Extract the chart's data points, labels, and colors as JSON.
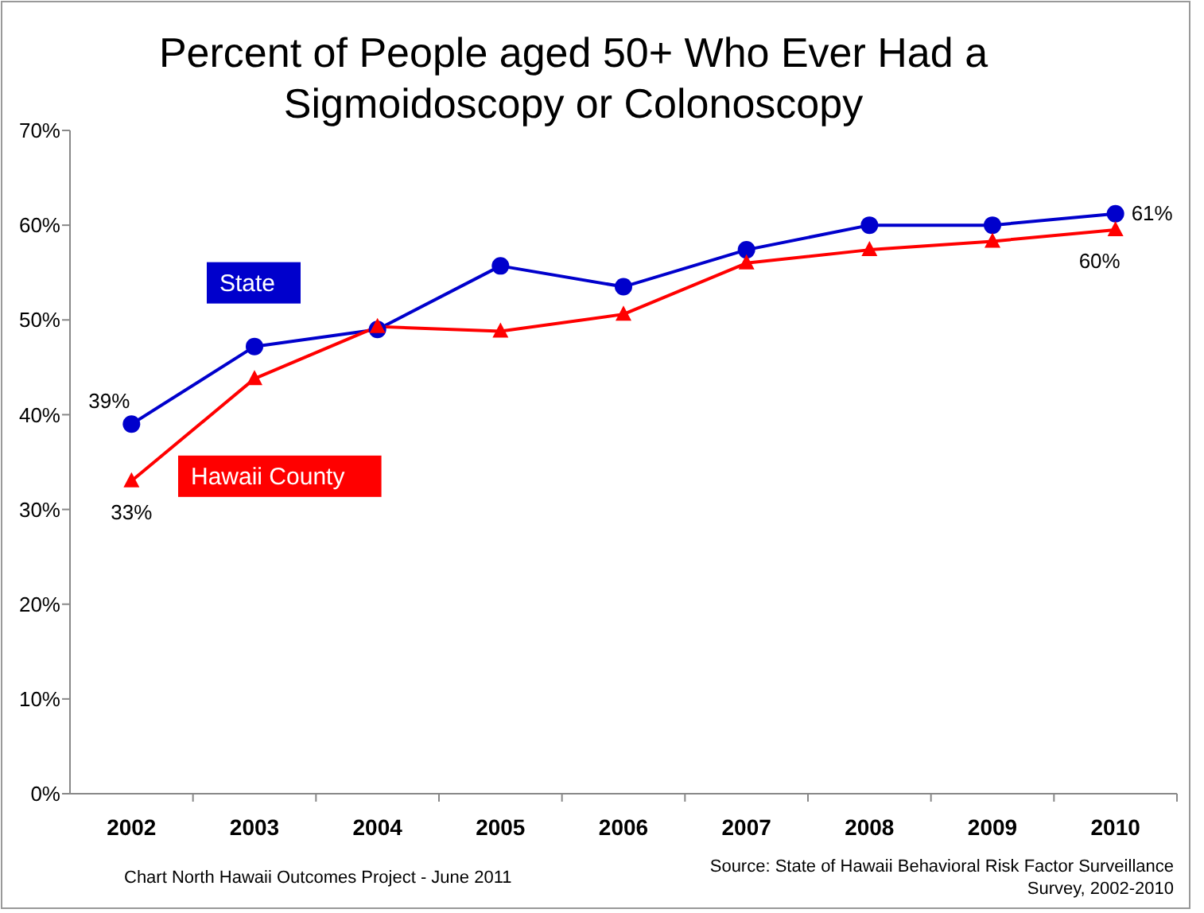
{
  "chart_data": {
    "type": "line",
    "title": "Percent of People aged 50+ Who Ever Had a Sigmoidoscopy or Colonoscopy",
    "categories": [
      "2002",
      "2003",
      "2004",
      "2005",
      "2006",
      "2007",
      "2008",
      "2009",
      "2010"
    ],
    "series": [
      {
        "name": "State",
        "color": "#0000cc",
        "marker": "circle",
        "values": [
          39,
          47.2,
          49,
          55.7,
          53.5,
          57.4,
          60,
          60,
          61.2
        ],
        "value_labels": [
          "39%",
          null,
          null,
          null,
          null,
          null,
          null,
          null,
          "61%"
        ]
      },
      {
        "name": "Hawaii County",
        "color": "#ff0000",
        "marker": "triangle",
        "values": [
          33,
          43.8,
          49.3,
          48.8,
          50.6,
          56,
          57.4,
          58.3,
          59.5
        ],
        "value_labels": [
          "33%",
          null,
          null,
          null,
          null,
          null,
          null,
          null,
          "60%"
        ]
      }
    ],
    "ylim": [
      0,
      70
    ],
    "yticks": [
      {
        "value": 0,
        "label": "0%"
      },
      {
        "value": 10,
        "label": "10%"
      },
      {
        "value": 20,
        "label": "20%"
      },
      {
        "value": 30,
        "label": "30%"
      },
      {
        "value": 40,
        "label": "40%"
      },
      {
        "value": 50,
        "label": "50%"
      },
      {
        "value": 60,
        "label": "60%"
      },
      {
        "value": 70,
        "label": "70%"
      }
    ],
    "grid": false,
    "line_style": "solid",
    "annotations": [
      "Chart  North Hawaii Outcomes Project - June 2011",
      "Source:  State of Hawaii Behavioral Risk Factor Surveillance Survey, 2002-2010"
    ]
  }
}
